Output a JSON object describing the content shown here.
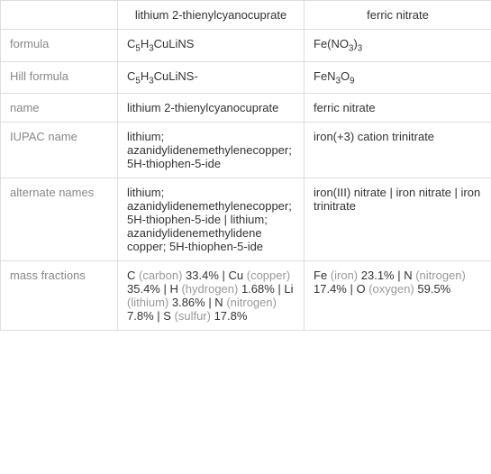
{
  "headers": {
    "col1": "lithium 2-thienylcyanocuprate",
    "col2": "ferric nitrate"
  },
  "rows": {
    "formula": {
      "label": "formula",
      "col1_html": "C<sub>5</sub>H<sub>3</sub>CuLiNS",
      "col2_html": "Fe(NO<sub>3</sub>)<sub>3</sub>"
    },
    "hill": {
      "label": "Hill formula",
      "col1_html": "C<sub>5</sub>H<sub>3</sub>CuLiNS-",
      "col2_html": "FeN<sub>3</sub>O<sub>9</sub>"
    },
    "name": {
      "label": "name",
      "col1": "lithium 2-thienylcyanocuprate",
      "col2": "ferric nitrate"
    },
    "iupac": {
      "label": "IUPAC name",
      "col1": "lithium; azanidylidenemethyleneco​pper; 5H-thiophen-5-ide",
      "col2": "iron(+3) cation trinitrate"
    },
    "alternate": {
      "label": "alternate names",
      "col1": "lithium; azanidylidenemethyleneco​pper; 5H-thiophen-5-ide | lithium; azanidylidenemethylidene​copper; 5H-thiophen-5-ide",
      "col2": "iron(III) nitrate | iron nitrate | iron trinitrate"
    },
    "mass": {
      "label": "mass fractions",
      "col1_html": "C <span class=\"muted\">(carbon)</span> 33.4% | Cu <span class=\"muted\">(copper)</span> 35.4% | H <span class=\"muted\">(hydrogen)</span> 1.68% | Li <span class=\"muted\">(lithium)</span> 3.86% | N <span class=\"muted\">(nitrogen)</span> 7.8% | S <span class=\"muted\">(sulfur)</span> 17.8%",
      "col2_html": "Fe <span class=\"muted\">(iron)</span> 23.1% | N <span class=\"muted\">(nitrogen)</span> 17.4% | O <span class=\"muted\">(oxygen)</span> 59.5%"
    }
  }
}
